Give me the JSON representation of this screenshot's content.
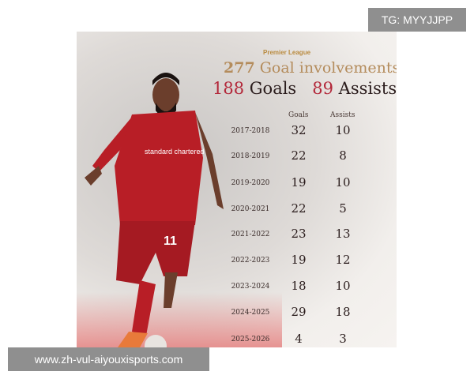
{
  "league": "Premier League",
  "headline": {
    "total": "277",
    "total_label": "Goal involvements",
    "goals": "188",
    "goals_label": "Goals",
    "assists": "89",
    "assists_label": "Assists"
  },
  "table": {
    "headers": [
      "Goals",
      "Assists"
    ],
    "rows": [
      {
        "season": "2017-2018",
        "goals": "32",
        "assists": "10"
      },
      {
        "season": "2018-2019",
        "goals": "22",
        "assists": "8"
      },
      {
        "season": "2019-2020",
        "goals": "19",
        "assists": "10"
      },
      {
        "season": "2020-2021",
        "goals": "22",
        "assists": "5"
      },
      {
        "season": "2021-2022",
        "goals": "23",
        "assists": "13"
      },
      {
        "season": "2022-2023",
        "goals": "19",
        "assists": "12"
      },
      {
        "season": "2023-2024",
        "goals": "18",
        "assists": "10"
      },
      {
        "season": "2024-2025",
        "goals": "29",
        "assists": "18"
      },
      {
        "season": "2025-2026",
        "goals": "4",
        "assists": "3"
      }
    ]
  },
  "player": {
    "shirt_number": "11",
    "sponsor": "standard chartered"
  },
  "watermarks": {
    "tg": "TG: MYYJJPP",
    "site": "www.zh-vul-aiyouxisports.com"
  },
  "colors": {
    "accent_red": "#b3283a",
    "gold": "#b48c5c",
    "kit_red": "#b81e26"
  }
}
